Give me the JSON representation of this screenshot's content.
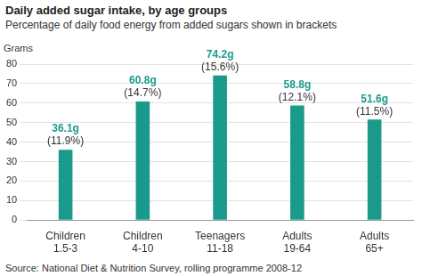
{
  "chart_data": {
    "type": "bar",
    "title": "Daily added sugar intake, by age groups",
    "subtitle": "Percentage of daily food energy from added sugars shown in brackets",
    "y_label": "Grams",
    "categories": [
      [
        "Children",
        "1.5-3"
      ],
      [
        "Children",
        "4-10"
      ],
      [
        "Teenagers",
        "11-18"
      ],
      [
        "Adults",
        "19-64"
      ],
      [
        "Adults",
        "65+"
      ]
    ],
    "values": [
      36.1,
      60.8,
      74.2,
      58.8,
      51.6
    ],
    "value_labels": [
      "36.1g",
      "60.8g",
      "74.2g",
      "58.8g",
      "51.6g"
    ],
    "energy_percent": [
      11.9,
      14.7,
      15.6,
      12.1,
      11.5
    ],
    "energy_percent_labels": [
      "(11.9%)",
      "(14.7%)",
      "(15.6%)",
      "(12.1%)",
      "(11.5%)"
    ],
    "color": "#1a9a8b",
    "ylim": [
      0,
      80
    ],
    "yticks": [
      0,
      10,
      20,
      30,
      40,
      50,
      60,
      70,
      80
    ],
    "grid": true,
    "data_labels": true,
    "source": "Source: National Diet & Nutrition Survey, rolling programme 2008-12"
  }
}
